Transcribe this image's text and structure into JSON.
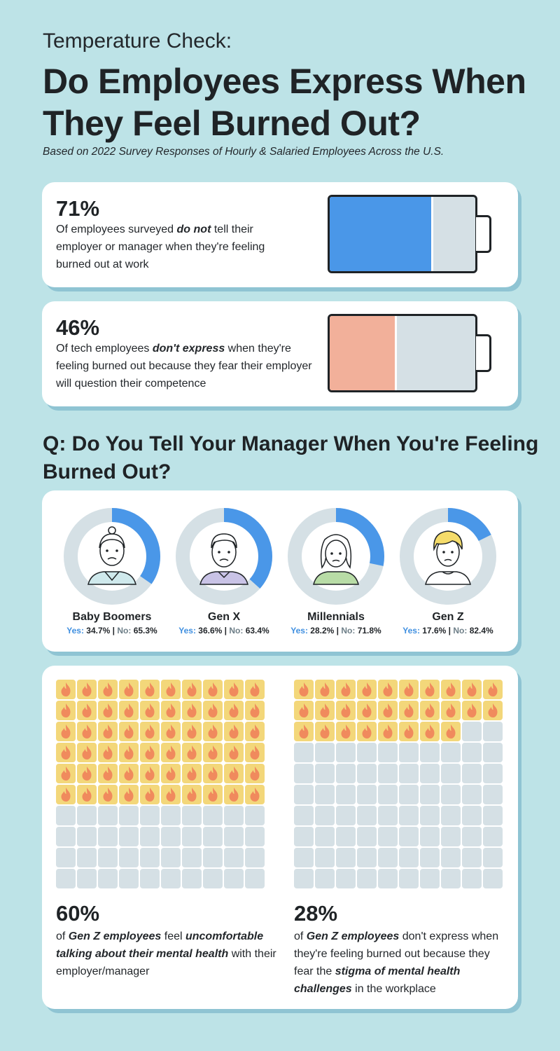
{
  "header": {
    "pretitle": "Temperature Check:",
    "title": "Do Employees Express When They Feel Burned Out?",
    "subtitle": "Based on 2022 Survey Responses of Hourly & Salaried Employees Across the U.S."
  },
  "stats": [
    {
      "value": "71%",
      "text_before": "Of employees surveyed ",
      "emphasis": "do not",
      "text_after": " tell their employer or manager when they're feeling burned out at work",
      "fill_percent": 71,
      "color": "#4a97e8"
    },
    {
      "value": "46%",
      "text_before": "Of tech employees ",
      "emphasis": "don't express",
      "text_after": " when they're feeling burned out because they fear their employer will question their competence",
      "fill_percent": 46,
      "color": "#f2b09a"
    }
  ],
  "section": {
    "title": "Q: Do You Tell Your Manager When You're Feeling Burned Out?"
  },
  "generations": {
    "yes_label": "Yes:",
    "no_label": "No:",
    "separator": "|",
    "items": [
      {
        "name": "Baby Boomers",
        "yes": "34.7%",
        "no": "65.3%",
        "yes_value": 34.7,
        "shirt_color": "#cfe9ec"
      },
      {
        "name": "Gen X",
        "yes": "36.6%",
        "no": "63.4%",
        "yes_value": 36.6,
        "shirt_color": "#c9c3e6"
      },
      {
        "name": "Millennials",
        "yes": "28.2%",
        "no": "71.8%",
        "yes_value": 28.2,
        "shirt_color": "#b8dca6"
      },
      {
        "name": "Gen Z",
        "yes": "17.6%",
        "no": "82.4%",
        "yes_value": 17.6,
        "shirt_color": "#ffffff"
      }
    ]
  },
  "colors": {
    "yes": "#4a97e8",
    "no": "#d5e0e5",
    "fire_bg": "#f3d77a",
    "flame": "#f08a5d"
  },
  "gen_z": [
    {
      "value": "60%",
      "fill_count": 60,
      "parts": [
        {
          "t": "of ",
          "b": false
        },
        {
          "t": "Gen Z employees",
          "b": true
        },
        {
          "t": " feel ",
          "b": false
        },
        {
          "t": "uncomfortable talking about their mental health",
          "b": true
        },
        {
          "t": " with their employer/manager",
          "b": false
        }
      ]
    },
    {
      "value": "28%",
      "fill_count": 28,
      "parts": [
        {
          "t": "of ",
          "b": false
        },
        {
          "t": "Gen Z employees",
          "b": true
        },
        {
          "t": " don't express when they're feeling burned out because they fear the ",
          "b": false
        },
        {
          "t": "stigma of mental health challenges",
          "b": true
        },
        {
          "t": " in the workplace",
          "b": false
        }
      ]
    }
  ]
}
